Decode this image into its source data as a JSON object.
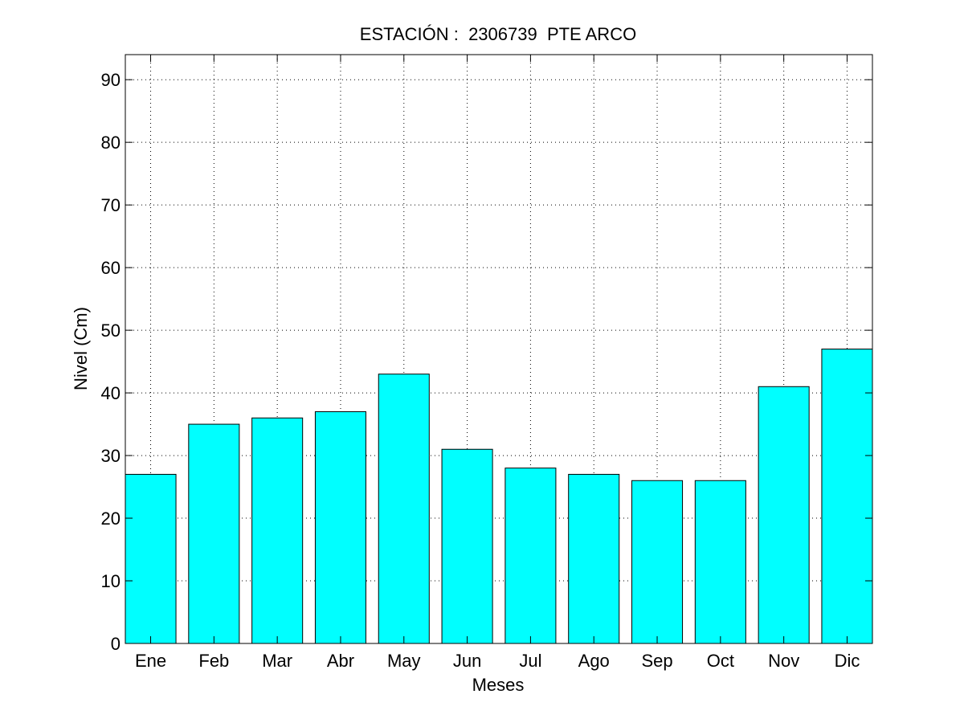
{
  "chart_data": {
    "type": "bar",
    "title": "ESTACIÓN :  2306739  PTE ARCO",
    "xlabel": "Meses",
    "ylabel": "Nivel (Cm)",
    "categories": [
      "Ene",
      "Feb",
      "Mar",
      "Abr",
      "May",
      "Jun",
      "Jul",
      "Ago",
      "Sep",
      "Oct",
      "Nov",
      "Dic"
    ],
    "values": [
      27,
      35,
      36,
      37,
      43,
      31,
      28,
      27,
      26,
      26,
      41,
      47
    ],
    "ylim": [
      0,
      94
    ],
    "yticks": [
      0,
      10,
      20,
      30,
      40,
      50,
      60,
      70,
      80,
      90
    ],
    "xlim": [
      1,
      12
    ],
    "grid": true,
    "bar_color": "#00ffff",
    "edge_color": "#000000"
  }
}
